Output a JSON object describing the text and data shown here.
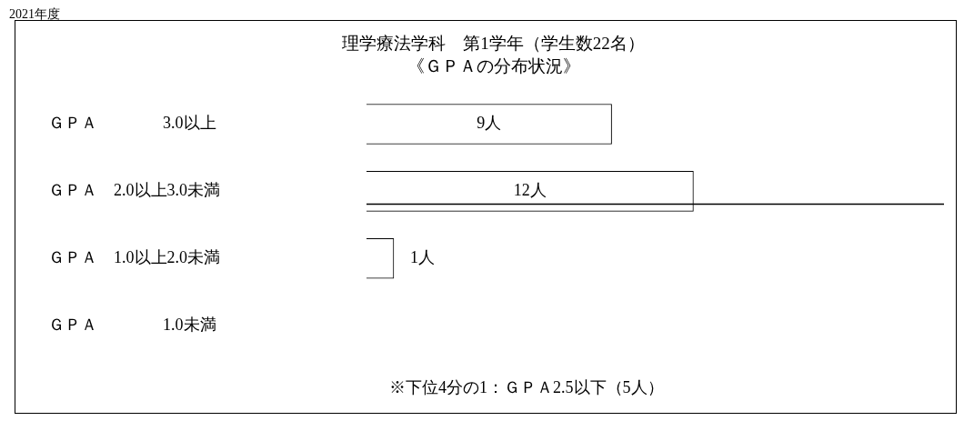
{
  "chart_data": {
    "type": "bar",
    "orientation": "horizontal",
    "title": "理学療法学科　第1学年（学生数22名）",
    "subtitle": "《ＧＰＡの分布状況》",
    "categories": [
      "ＧＰＡ　　　　3.0以上",
      "ＧＰＡ　2.0以上3.0未満",
      "ＧＰＡ　1.0以上2.0未満",
      "ＧＰＡ　　　　1.0未満"
    ],
    "values": [
      9,
      12,
      1,
      0
    ],
    "color": "#ffffff",
    "value_labels": [
      "9人",
      "12人",
      "1人",
      null
    ],
    "annotations": [
      "2021年度",
      "※下位4分の1：ＧＰＡ2.5以下（5人）"
    ],
    "ref_lines": [
      {
        "axis": "y",
        "value": "ＧＰＡ　2.0以上3.0未満",
        "color": "#000000"
      }
    ],
    "grid": false,
    "legend": false
  }
}
